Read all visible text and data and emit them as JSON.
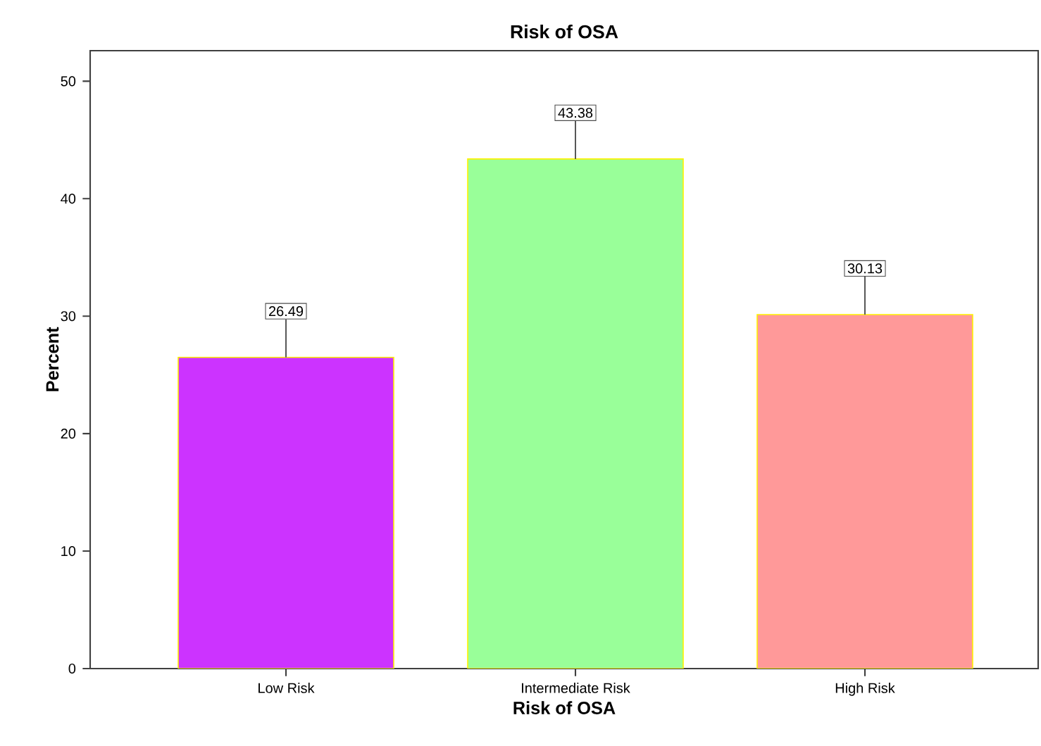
{
  "chart_data": {
    "type": "bar",
    "title": "Risk of OSA",
    "xlabel": "Risk of OSA",
    "ylabel": "Percent",
    "categories": [
      "Low Risk",
      "Intermediate Risk",
      "High Risk"
    ],
    "values": [
      26.49,
      43.38,
      30.13
    ],
    "colors": [
      "#cc33ff",
      "#99ff99",
      "#ff9999"
    ],
    "ylim": [
      0,
      52.6
    ],
    "yticks": [
      0,
      10,
      20,
      30,
      40,
      50
    ],
    "grid": false,
    "data_labels": true
  }
}
